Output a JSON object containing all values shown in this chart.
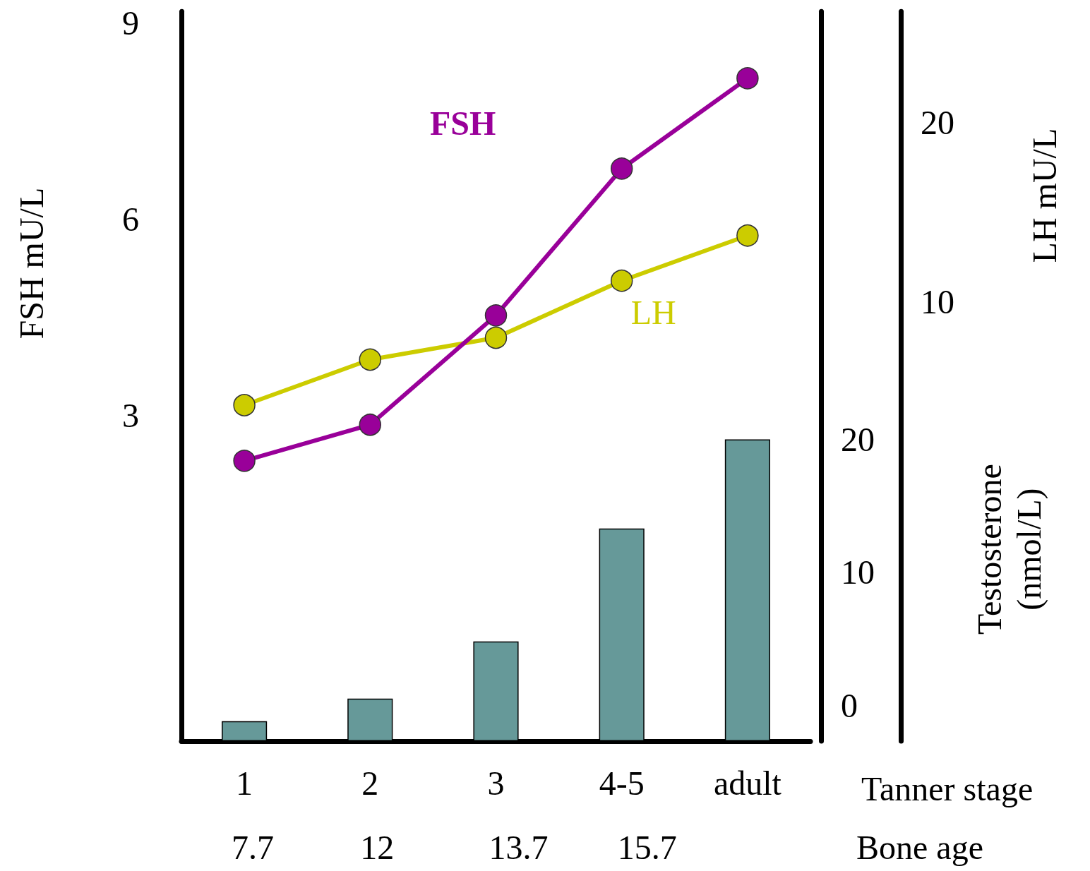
{
  "chart_data": {
    "type": "line",
    "categories": [
      "1",
      "2",
      "3",
      "4-5",
      "adult"
    ],
    "xlabel": "Tanner stage",
    "ylabel": "FSH mU/L",
    "y2label": "LH mU/L",
    "y3label": "Testosterone\n(nmol/L)",
    "ylim": [
      -1.97,
      9.17
    ],
    "yticks": [
      3,
      6,
      9
    ],
    "y2lim": [
      -14.5,
      26.2
    ],
    "y2ticks": [
      10,
      20
    ],
    "y3lim": [
      -2.7,
      52.2
    ],
    "y3ticks": [
      0,
      10,
      20
    ],
    "series": [
      {
        "name": "FSH",
        "color": "#990099",
        "values": [
          2.31,
          2.86,
          4.53,
          6.77,
          8.15
        ]
      },
      {
        "name": "LH",
        "color": "#cccc00",
        "axis": "y2",
        "values": [
          4.24,
          6.78,
          8.0,
          11.18,
          13.7
        ]
      },
      {
        "type": "bar",
        "color": "#669999",
        "axis": "y3",
        "base": [
          -2.7,
          -2.7,
          -2.7,
          -2.7,
          -2.7
        ],
        "values": [
          1.5,
          3.2,
          7.5,
          16.0,
          22.7
        ]
      }
    ],
    "annotations": [
      "7.7",
      "12",
      "13.7",
      "15.7",
      "Bone age"
    ],
    "marker": "circle",
    "legend": false,
    "grid": false
  }
}
